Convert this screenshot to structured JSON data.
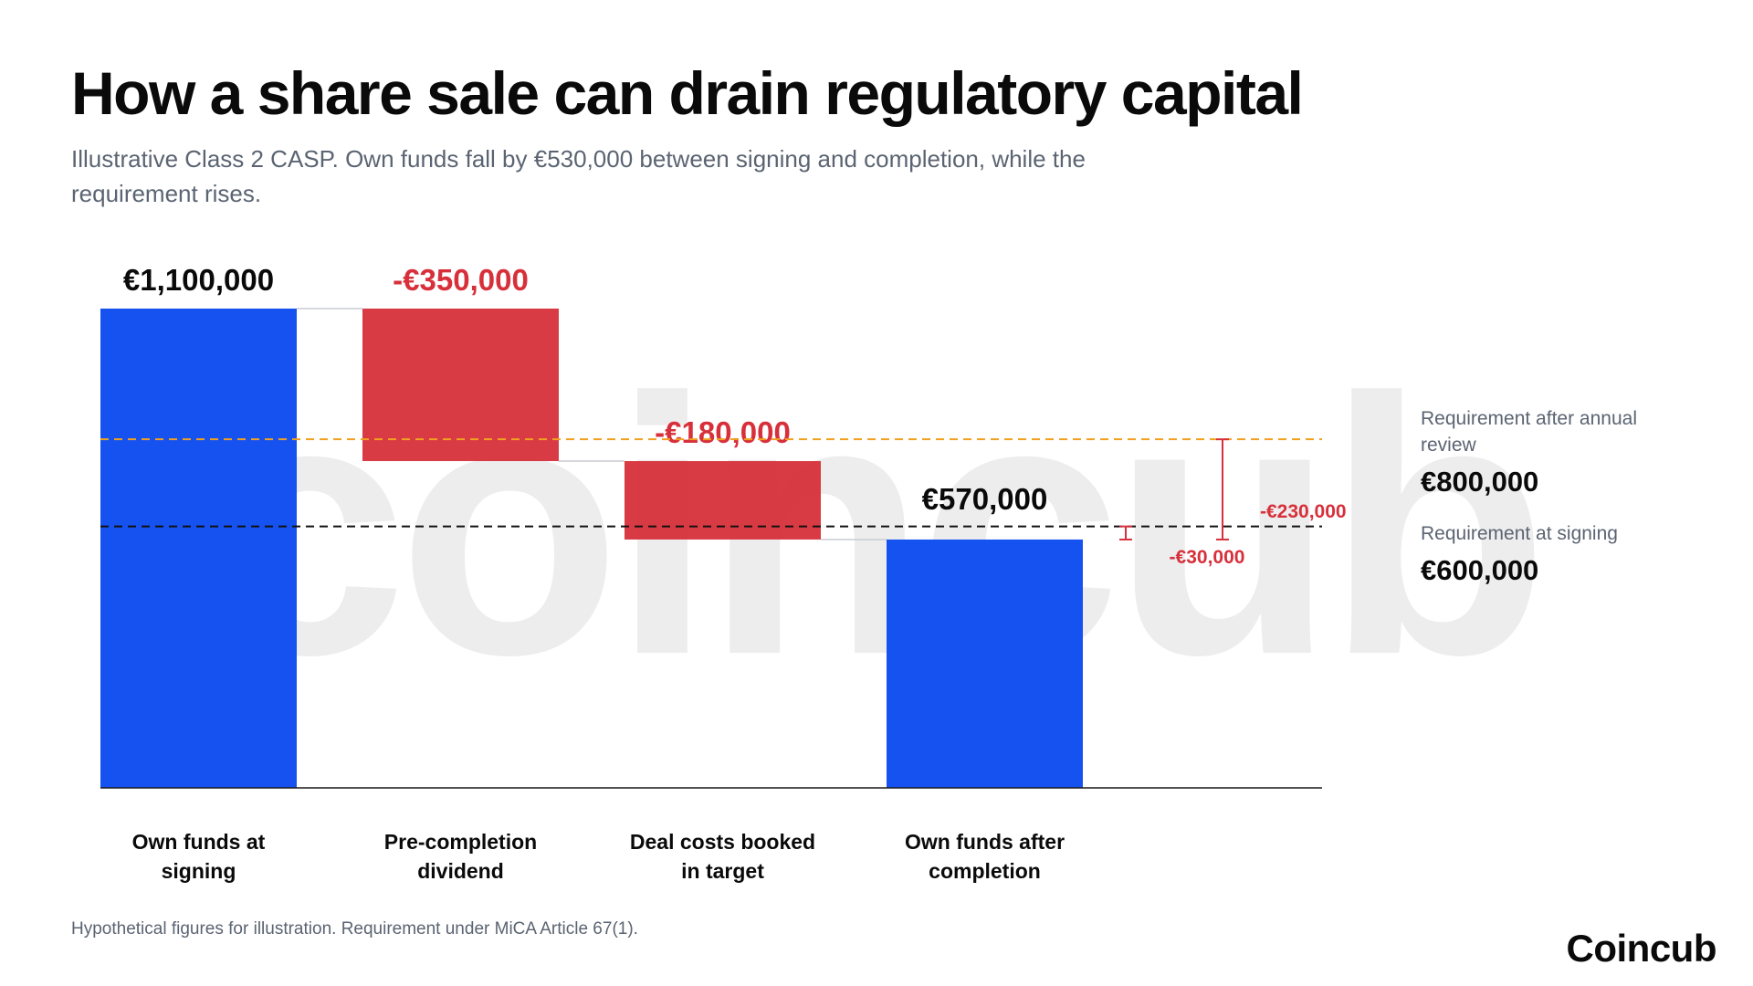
{
  "header": {
    "title": "How a share sale can drain regulatory capital",
    "subtitle": "Illustrative Class 2 CASP. Own funds fall by €530,000 between signing and completion, while the requirement rises."
  },
  "watermark": "coincub",
  "chart_data": {
    "type": "waterfall",
    "ylim": [
      0,
      1100000
    ],
    "steps": [
      {
        "label": "Own funds at signing",
        "value": 1100000,
        "kind": "total",
        "data_label": "€1,100,000"
      },
      {
        "label": "Pre-completion dividend",
        "value": -350000,
        "kind": "delta",
        "data_label": "-€350,000"
      },
      {
        "label": "Deal costs booked in target",
        "value": -180000,
        "kind": "delta",
        "data_label": "-€180,000"
      },
      {
        "label": "Own funds after completion",
        "value": 570000,
        "kind": "total",
        "data_label": "€570,000"
      }
    ],
    "reference_lines": [
      {
        "name": "Requirement after annual review",
        "value": 800000,
        "value_label": "€800,000",
        "style": "dashed",
        "color": "#f0a020"
      },
      {
        "name": "Requirement at signing",
        "value": 600000,
        "value_label": "€600,000",
        "style": "dashed",
        "color": "#111111"
      }
    ],
    "gaps": [
      {
        "from": 570000,
        "to": 600000,
        "label": "-€30,000"
      },
      {
        "from": 570000,
        "to": 800000,
        "label": "-€230,000"
      }
    ],
    "grid": false,
    "legend": "none"
  },
  "colors": {
    "total": "#1652f0",
    "negative": "#d7303b",
    "requirement_review": "#f0a020",
    "requirement_signing": "#111111",
    "gap": "#d7303b"
  },
  "footnote": "Hypothetical figures for illustration. Requirement under MiCA Article 67(1).",
  "logo": "Coincub"
}
